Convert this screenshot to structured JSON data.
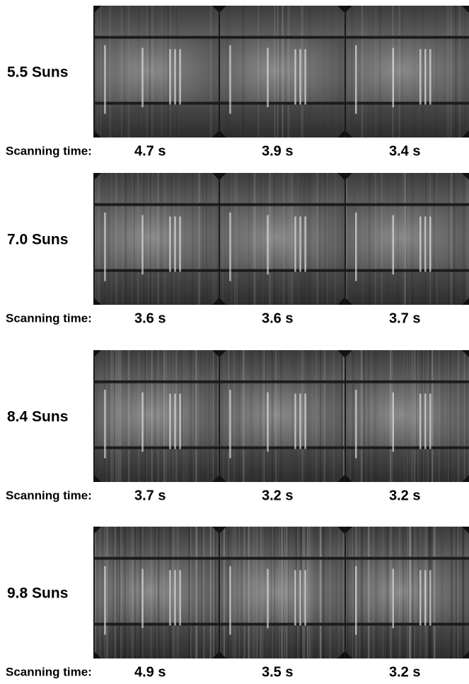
{
  "rows": [
    {
      "label": "5.5 Suns",
      "scan_label": "Scanning time:",
      "times": [
        "4.7 s",
        "3.9 s",
        "3.4 s"
      ]
    },
    {
      "label": "7.0 Suns",
      "scan_label": "Scanning time:",
      "times": [
        "3.6 s",
        "3.6 s",
        "3.7 s"
      ]
    },
    {
      "label": "8.4 Suns",
      "scan_label": "Scanning time:",
      "times": [
        "3.7 s",
        "3.2 s",
        "3.2 s"
      ]
    },
    {
      "label": "9.8 Suns",
      "scan_label": "Scanning time:",
      "times": [
        "4.9 s",
        "3.5 s",
        "3.2 s"
      ]
    }
  ]
}
